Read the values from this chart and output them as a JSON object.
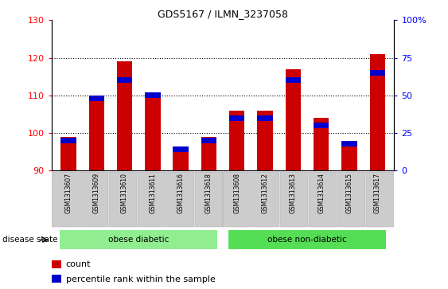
{
  "title": "GDS5167 / ILMN_3237058",
  "samples": [
    "GSM1313607",
    "GSM1313609",
    "GSM1313610",
    "GSM1313611",
    "GSM1313616",
    "GSM1313618",
    "GSM1313608",
    "GSM1313612",
    "GSM1313613",
    "GSM1313614",
    "GSM1313615",
    "GSM1313617"
  ],
  "count_values": [
    99.0,
    110.0,
    119.0,
    110.0,
    96.0,
    99.0,
    106.0,
    106.0,
    117.0,
    104.0,
    97.0,
    121.0
  ],
  "percentile_values": [
    20,
    48,
    60,
    50,
    14,
    20,
    35,
    35,
    60,
    30,
    18,
    65
  ],
  "ylim_left": [
    90,
    130
  ],
  "ylim_right": [
    0,
    100
  ],
  "yticks_left": [
    90,
    100,
    110,
    120,
    130
  ],
  "yticks_right": [
    0,
    25,
    50,
    75,
    100
  ],
  "ytick_labels_right": [
    "0",
    "25",
    "50",
    "75",
    "100%"
  ],
  "bar_color": "#cc0000",
  "percentile_color": "#0000cc",
  "bg_color": "#ffffff",
  "disease_groups": [
    {
      "label": "obese diabetic",
      "start": 0,
      "end": 6
    },
    {
      "label": "obese non-diabetic",
      "start": 6,
      "end": 12
    }
  ],
  "disease_colors": [
    "#90ee90",
    "#55dd55"
  ],
  "disease_label": "disease state",
  "legend_count_label": "count",
  "legend_percentile_label": "percentile rank within the sample",
  "bar_width": 0.55,
  "baseline": 90,
  "xlim": [
    -0.6,
    11.6
  ]
}
